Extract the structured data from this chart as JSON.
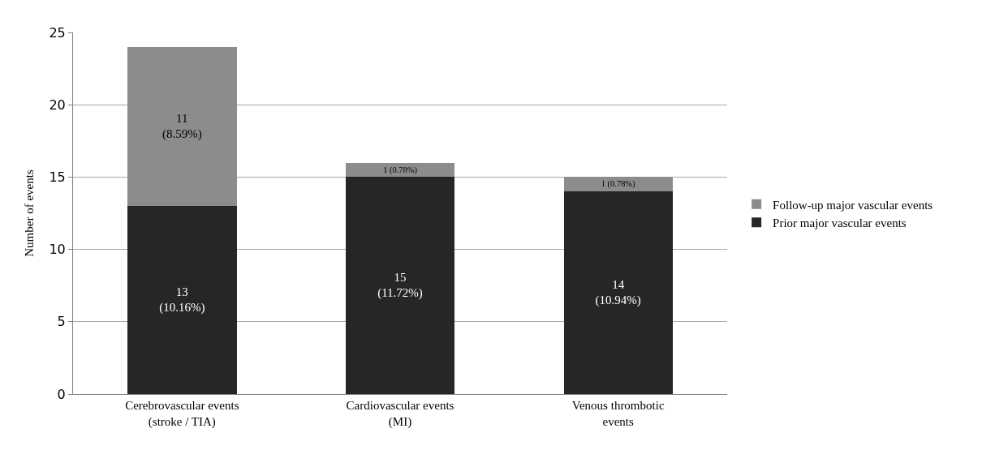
{
  "chart_data": {
    "type": "bar",
    "stacked": true,
    "ylabel": "Number of events",
    "categories": [
      "Cerebrovascular events\n(stroke / TIA)",
      "Cardiovascular events\n(MI)",
      "Venous thrombotic\nevents"
    ],
    "series": [
      {
        "name": "Prior major vascular events",
        "color": "#262626",
        "values": [
          13,
          15,
          14
        ],
        "value_labels": [
          "13\n(10.16%)",
          "15\n(11.72%)",
          "14\n(10.94%)"
        ]
      },
      {
        "name": "Follow-up major vascular events",
        "color": "#8c8c8c",
        "values": [
          11,
          1,
          1
        ],
        "value_labels": [
          "11\n(8.59%)",
          "1 (0.78%)",
          "1 (0.78%)"
        ]
      }
    ],
    "ylim": [
      0,
      25
    ],
    "yticks": [
      0,
      5,
      10,
      15,
      20,
      25
    ],
    "grid": "y",
    "legend": "right"
  }
}
